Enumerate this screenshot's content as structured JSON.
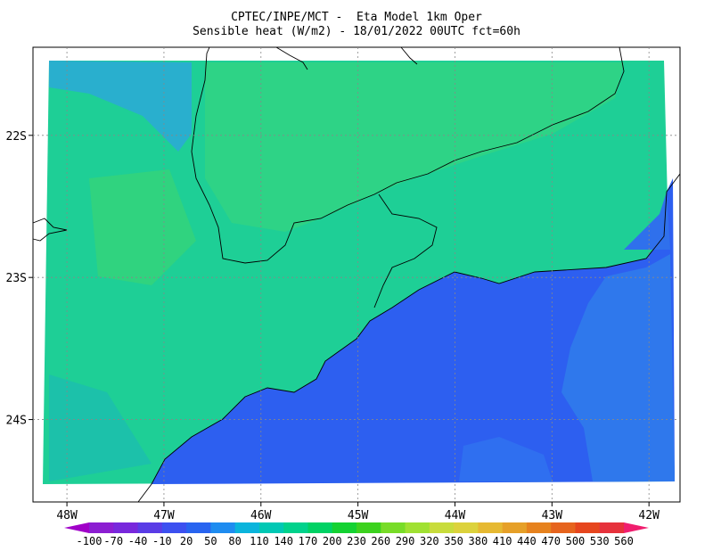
{
  "header": {
    "title": "CPTEC/INPE/MCT -  Eta Model 1km Oper",
    "subtitle": "Sensible heat (W/m2) - 18/01/2022 00UTC fct=60h"
  },
  "map": {
    "lon_range": [
      -48.35,
      -41.68
    ],
    "lat_range": [
      -21.38,
      -24.58
    ],
    "grid": true,
    "lon_ticks": [
      {
        "value": -48,
        "label": "48W"
      },
      {
        "value": -47,
        "label": "47W"
      },
      {
        "value": -46,
        "label": "46W"
      },
      {
        "value": -45,
        "label": "45W"
      },
      {
        "value": -44,
        "label": "44W"
      },
      {
        "value": -43,
        "label": "43W"
      },
      {
        "value": -42,
        "label": "42W"
      }
    ],
    "lat_ticks": [
      {
        "value": -22,
        "label": "22S"
      },
      {
        "value": -23,
        "label": "23S"
      },
      {
        "value": -24,
        "label": "24S"
      }
    ]
  },
  "colorbar": {
    "levels": [
      -100,
      -70,
      -40,
      -10,
      20,
      50,
      80,
      110,
      140,
      170,
      200,
      230,
      260,
      290,
      320,
      350,
      380,
      410,
      440,
      470,
      500,
      530,
      560
    ],
    "colors": [
      "#a000c8",
      "#8c1ed2",
      "#7828dc",
      "#5a3ce6",
      "#3c50f0",
      "#2864f0",
      "#1e8cf0",
      "#0ab4dc",
      "#00c8b4",
      "#00d28c",
      "#00d264",
      "#14d232",
      "#3cd21e",
      "#78dc28",
      "#a0e132",
      "#c8dc3c",
      "#dcd23c",
      "#e6b932",
      "#e6a028",
      "#e6821e",
      "#e6641e",
      "#e6461e",
      "#e6323c",
      "#f01e6e"
    ]
  }
}
